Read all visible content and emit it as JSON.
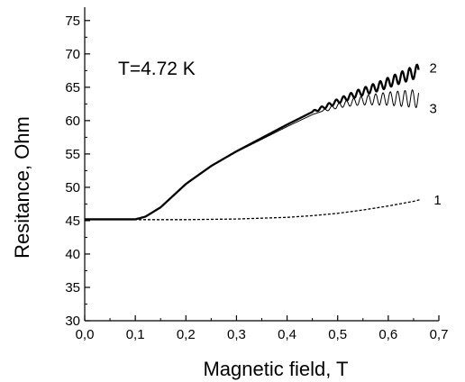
{
  "chart_data": {
    "type": "line",
    "title": "",
    "xlabel": "Magnetic field, T",
    "ylabel": "Resitance, Ohm",
    "xlim": [
      0.0,
      0.7
    ],
    "ylim": [
      30,
      77
    ],
    "x_ticks": [
      0.0,
      0.1,
      0.2,
      0.3,
      0.4,
      0.5,
      0.6,
      0.7
    ],
    "x_tick_labels": [
      "0,0",
      "0,1",
      "0,2",
      "0,3",
      "0,4",
      "0,5",
      "0,6",
      "0,7"
    ],
    "y_ticks": [
      30,
      35,
      40,
      45,
      50,
      55,
      60,
      65,
      70,
      75
    ],
    "y_tick_labels": [
      "30",
      "35",
      "40",
      "45",
      "50",
      "55",
      "60",
      "65",
      "70",
      "75"
    ],
    "grid": false,
    "legend": "none",
    "annotation": "T=4.72 K",
    "series": [
      {
        "name": "2",
        "style": "solid-thick",
        "color": "#000000",
        "x": [
          0.0,
          0.05,
          0.1,
          0.12,
          0.15,
          0.2,
          0.25,
          0.3,
          0.35,
          0.4,
          0.45,
          0.5,
          0.52,
          0.54,
          0.56,
          0.58,
          0.6,
          0.62,
          0.64,
          0.66
        ],
        "y": [
          45.2,
          45.2,
          45.2,
          45.6,
          47.0,
          50.5,
          53.2,
          55.4,
          57.4,
          59.4,
          61.3,
          62.9,
          63.5,
          64.1,
          64.6,
          65.1,
          65.7,
          66.3,
          66.9,
          67.5
        ],
        "oscillation": {
          "start": 0.45,
          "period": 0.0145,
          "amplitude_start": 0.15,
          "amplitude_end": 1.0
        }
      },
      {
        "name": "3",
        "style": "solid-thin",
        "color": "#000000",
        "x": [
          0.0,
          0.05,
          0.1,
          0.12,
          0.15,
          0.2,
          0.25,
          0.3,
          0.35,
          0.4,
          0.45,
          0.5,
          0.52,
          0.54,
          0.56,
          0.58,
          0.6,
          0.62,
          0.64,
          0.66
        ],
        "y": [
          45.2,
          45.2,
          45.2,
          45.6,
          47.0,
          50.5,
          53.2,
          55.3,
          57.2,
          59.1,
          60.9,
          62.2,
          62.6,
          62.9,
          63.1,
          63.2,
          63.3,
          63.3,
          63.3,
          63.3
        ],
        "oscillation": {
          "start": 0.47,
          "period": 0.0145,
          "amplitude_start": 0.15,
          "amplitude_end": 1.4
        }
      },
      {
        "name": "1",
        "style": "dashed",
        "color": "#000000",
        "x": [
          0.0,
          0.1,
          0.2,
          0.3,
          0.4,
          0.45,
          0.5,
          0.55,
          0.6,
          0.65,
          0.665
        ],
        "y": [
          45.2,
          45.15,
          45.15,
          45.25,
          45.5,
          45.75,
          46.1,
          46.6,
          47.2,
          47.9,
          48.2
        ]
      }
    ]
  }
}
